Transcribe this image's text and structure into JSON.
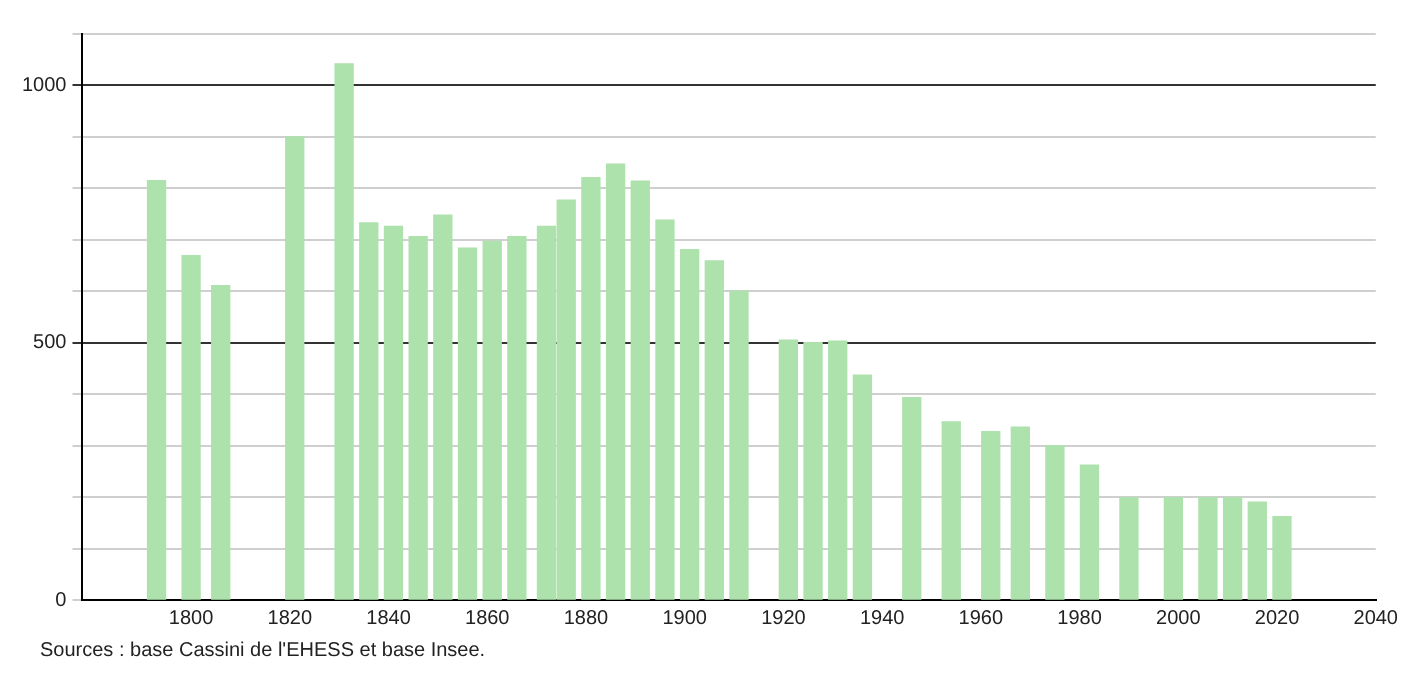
{
  "chart_data": {
    "type": "bar",
    "x": [
      1793,
      1800,
      1806,
      1821,
      1831,
      1836,
      1841,
      1846,
      1851,
      1856,
      1861,
      1866,
      1872,
      1876,
      1881,
      1886,
      1891,
      1896,
      1901,
      1906,
      1911,
      1921,
      1926,
      1931,
      1936,
      1946,
      1954,
      1962,
      1968,
      1975,
      1982,
      1990,
      1999,
      2006,
      2011,
      2016,
      2021
    ],
    "values": [
      815,
      669,
      611,
      900,
      1042,
      733,
      726,
      706,
      748,
      684,
      697,
      706,
      726,
      777,
      821,
      847,
      814,
      738,
      681,
      659,
      600,
      505,
      500,
      503,
      437,
      393,
      346,
      327,
      336,
      300,
      262,
      199,
      199,
      199,
      199,
      190,
      162
    ],
    "color": "#ade2ad",
    "xlim": [
      1778,
      2040
    ],
    "xticks": [
      1800,
      1820,
      1840,
      1860,
      1880,
      1900,
      1920,
      1940,
      1960,
      1980,
      2000,
      2020,
      2040
    ],
    "ylim": [
      0,
      1100
    ],
    "yticks": [
      0,
      {
        "value": 100,
        "label": null
      },
      {
        "value": 200,
        "label": null
      },
      {
        "value": 300,
        "label": null
      },
      {
        "value": 400,
        "label": null
      },
      500,
      {
        "value": 600,
        "label": null
      },
      {
        "value": 700,
        "label": null
      },
      {
        "value": 800,
        "label": null
      },
      {
        "value": 900,
        "label": null
      },
      1000,
      {
        "value": 1100,
        "label": null
      }
    ],
    "grid": "y",
    "legend": false,
    "annotations": [
      "Sources : base Cassini de l'EHESS et base Insee."
    ]
  }
}
